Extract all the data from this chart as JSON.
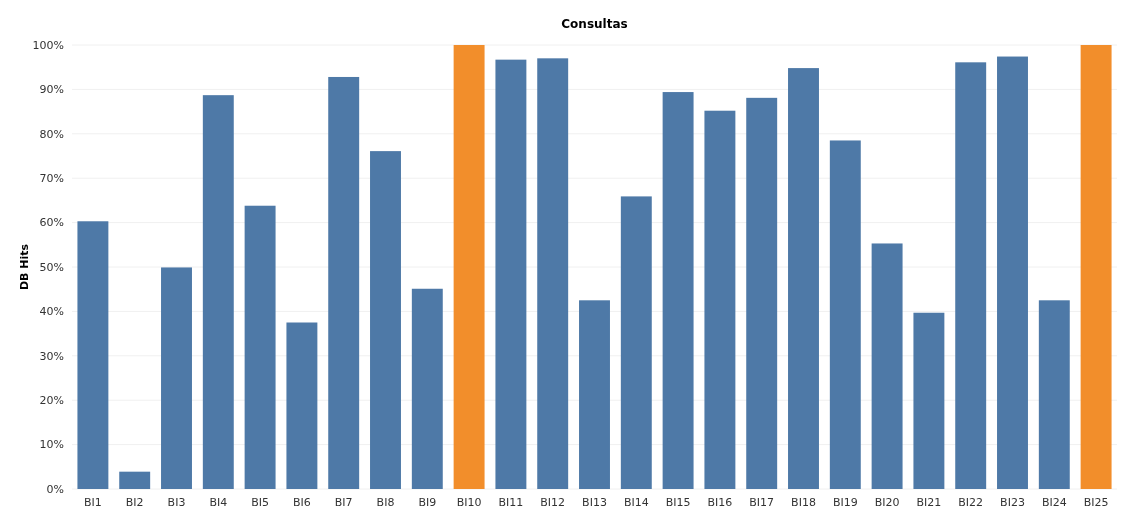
{
  "chart_data": {
    "type": "bar",
    "title": "Consultas",
    "ylabel": "DB Hits",
    "categories": [
      "BI1",
      "BI2",
      "BI3",
      "BI4",
      "BI5",
      "BI6",
      "BI7",
      "BI8",
      "BI9",
      "BI10",
      "BI11",
      "BI12",
      "BI13",
      "BI14",
      "BI15",
      "BI16",
      "BI17",
      "BI18",
      "BI19",
      "BI20",
      "BI21",
      "BI22",
      "BI23",
      "BI24",
      "BI25"
    ],
    "values": [
      60.3,
      3.9,
      49.9,
      88.7,
      63.8,
      37.5,
      92.8,
      76.1,
      45.1,
      100,
      96.7,
      97,
      42.5,
      65.9,
      89.4,
      85.2,
      88.1,
      94.8,
      78.5,
      55.3,
      39.7,
      96.1,
      97.4,
      42.5,
      100
    ],
    "colors": [
      "#4e79a7",
      "#4e79a7",
      "#4e79a7",
      "#4e79a7",
      "#4e79a7",
      "#4e79a7",
      "#4e79a7",
      "#4e79a7",
      "#4e79a7",
      "#f28e2b",
      "#4e79a7",
      "#4e79a7",
      "#4e79a7",
      "#4e79a7",
      "#4e79a7",
      "#4e79a7",
      "#4e79a7",
      "#4e79a7",
      "#4e79a7",
      "#4e79a7",
      "#4e79a7",
      "#4e79a7",
      "#4e79a7",
      "#4e79a7",
      "#f28e2b"
    ],
    "ylim": [
      0,
      100
    ],
    "yticks": [
      {
        "value": 0,
        "label": "0%"
      },
      {
        "value": 10,
        "label": "10%"
      },
      {
        "value": 20,
        "label": "20%"
      },
      {
        "value": 30,
        "label": "30%"
      },
      {
        "value": 40,
        "label": "40%"
      },
      {
        "value": 50,
        "label": "50%"
      },
      {
        "value": 60,
        "label": "60%"
      },
      {
        "value": 70,
        "label": "70%"
      },
      {
        "value": 80,
        "label": "80%"
      },
      {
        "value": 90,
        "label": "90%"
      },
      {
        "value": 100,
        "label": "100%"
      }
    ],
    "grid": "y"
  }
}
